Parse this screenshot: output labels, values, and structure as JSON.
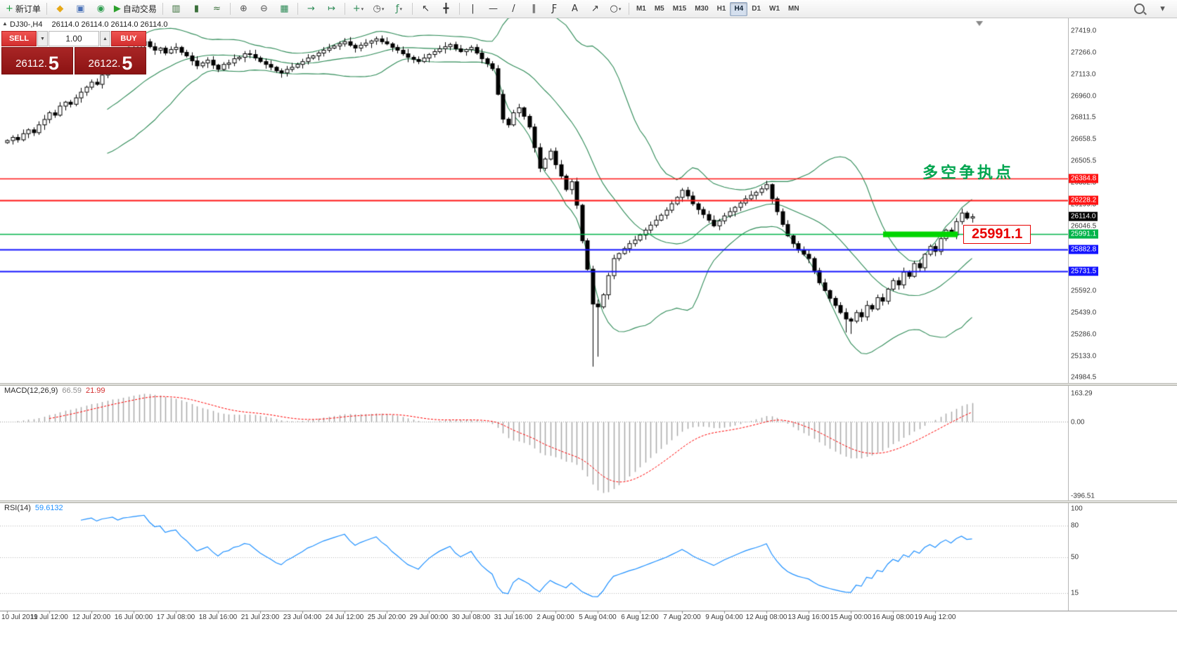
{
  "toolbar": {
    "left_groups": [
      {
        "items": [
          {
            "name": "new-order",
            "glyph": "+",
            "color": "#1a9c3e",
            "label": "新订单"
          }
        ]
      },
      {
        "items": [
          {
            "name": "alerts",
            "glyph": "◆",
            "color": "#e6a817"
          },
          {
            "name": "terminal-window",
            "glyph": "▣",
            "color": "#4a72b8"
          },
          {
            "name": "web-community",
            "glyph": "◉",
            "color": "#2e9e4f"
          },
          {
            "name": "autotrade",
            "glyph": "▶",
            "color": "#2ca02c",
            "label": "自动交易"
          }
        ]
      },
      {
        "items": [
          {
            "name": "bar-chart",
            "glyph": "▥",
            "color": "#3a6f3a"
          },
          {
            "name": "candlestick-chart",
            "glyph": "▮",
            "color": "#3a6f3a"
          },
          {
            "name": "line-chart",
            "glyph": "≈",
            "color": "#3a6f3a"
          }
        ]
      },
      {
        "items": [
          {
            "name": "zoom-in",
            "glyph": "⊕",
            "color": "#555555"
          },
          {
            "name": "zoom-out",
            "glyph": "⊖",
            "color": "#555555"
          },
          {
            "name": "tile-windows",
            "glyph": "▦",
            "color": "#2e8b57"
          }
        ]
      },
      {
        "items": [
          {
            "name": "auto-scroll",
            "glyph": "→",
            "color": "#2e8b57"
          },
          {
            "name": "chart-shift",
            "glyph": "↦",
            "color": "#2e8b57"
          }
        ]
      },
      {
        "items": [
          {
            "name": "new-chart",
            "glyph": "+",
            "color": "#2e8b57",
            "dropdown": true
          },
          {
            "name": "periods",
            "glyph": "◷",
            "color": "#555555",
            "dropdown": true
          },
          {
            "name": "indicators",
            "glyph": "ƒ",
            "color": "#2e8b57",
            "dropdown": true
          }
        ]
      },
      {
        "items": [
          {
            "name": "cursor",
            "glyph": "↖",
            "color": "#333333"
          },
          {
            "name": "crosshair",
            "glyph": "╋",
            "color": "#333333"
          }
        ]
      },
      {
        "items": [
          {
            "name": "vertical-line",
            "glyph": "|",
            "color": "#333333"
          },
          {
            "name": "horizontal-line",
            "glyph": "—",
            "color": "#333333"
          },
          {
            "name": "trendline",
            "glyph": "/",
            "color": "#333333"
          },
          {
            "name": "equidistant-channel",
            "glyph": "∥",
            "color": "#333333"
          },
          {
            "name": "fibonacci",
            "glyph": "Ƒ",
            "color": "#333333"
          },
          {
            "name": "text",
            "glyph": "A",
            "color": "#333333"
          },
          {
            "name": "arrows",
            "glyph": "↗",
            "color": "#333333"
          },
          {
            "name": "shapes",
            "glyph": "○",
            "color": "#333333",
            "dropdown": true
          }
        ]
      }
    ],
    "timeframes": [
      "M1",
      "M5",
      "M15",
      "M30",
      "H1",
      "H4",
      "D1",
      "W1",
      "MN"
    ],
    "active_timeframe": "H4"
  },
  "one_click": {
    "sell_label": "SELL",
    "buy_label": "BUY",
    "volume": "1.00",
    "sell_price_main": "26112.",
    "sell_price_big": "5",
    "buy_price_main": "26122.",
    "buy_price_big": "5"
  },
  "chart": {
    "symbol_info": "DJ30-,H4",
    "ohlc_info": "26114.0  26114.0  26114.0  26114.0",
    "current_price": "26114.0",
    "annotation": "多空争执点",
    "callout": "25991.1",
    "axis_labels": [
      "27419.0",
      "27266.0",
      "27113.0",
      "26960.0",
      "26811.5",
      "26658.5",
      "26505.5",
      "26352.5",
      "26199.5",
      "26046.5",
      "25893.5",
      "25740.5",
      "25592.0",
      "25439.0",
      "25286.0",
      "25133.0",
      "24984.5"
    ],
    "lines": [
      {
        "price": 26384.8,
        "color": "#ff1414",
        "width": 1.5,
        "tag": "26384.8"
      },
      {
        "price": 26228.2,
        "color": "#ff1414",
        "width": 2,
        "tag": "26228.2"
      },
      {
        "price": 25991.1,
        "color": "#00b44a",
        "width": 1.5,
        "tag": "25991.1",
        "highlight": true,
        "highlight_from": 1256,
        "highlight_to": 1362
      },
      {
        "price": 25882.8,
        "color": "#1414ff",
        "width": 2,
        "tag": "25882.8"
      },
      {
        "price": 25731.5,
        "color": "#1414ff",
        "width": 2,
        "tag": "25731.5"
      }
    ]
  },
  "macd_panel": {
    "label": "MACD(12,26,9)",
    "value1": "66.59",
    "value2": "21.99",
    "axis_max": "163.29",
    "axis_zero": "0.00",
    "axis_min": "-396.51"
  },
  "rsi_panel": {
    "label": "RSI(14)",
    "value": "59.6132",
    "axis": [
      "100",
      "80",
      "50",
      "15"
    ],
    "levels": [
      80,
      50,
      15
    ]
  },
  "colors": {
    "bollinger": "#2e8b57",
    "highlight_green": "#00d500",
    "macd_hist": "#a8a8a8",
    "macd_signal": "#ff0000",
    "rsi_line": "#1e90ff",
    "bull_candle": "#ffffff",
    "bear_candle": "#000000"
  },
  "chart_data": {
    "type": "candlestick",
    "symbol": "DJ30-",
    "timeframe": "H4",
    "ylim": [
      24950,
      27470
    ],
    "closes": [
      26650,
      26672,
      26655,
      26698,
      26725,
      26705,
      26760,
      26798,
      26845,
      26828,
      26892,
      26920,
      26905,
      26950,
      26990,
      27025,
      27060,
      27045,
      27110,
      27140,
      27175,
      27160,
      27230,
      27255,
      27290,
      27320,
      27345,
      27310,
      27285,
      27300,
      27265,
      27290,
      27305,
      27270,
      27245,
      27210,
      27175,
      27195,
      27215,
      27180,
      27150,
      27185,
      27195,
      27225,
      27235,
      27260,
      27255,
      27230,
      27205,
      27185,
      27165,
      27140,
      27125,
      27150,
      27165,
      27185,
      27205,
      27230,
      27245,
      27265,
      27285,
      27300,
      27315,
      27330,
      27345,
      27320,
      27300,
      27320,
      27335,
      27350,
      27365,
      27345,
      27330,
      27305,
      27285,
      27260,
      27235,
      27220,
      27205,
      27230,
      27255,
      27275,
      27295,
      27310,
      27325,
      27295,
      27275,
      27290,
      27305,
      27265,
      27225,
      27190,
      27155,
      26975,
      26800,
      26760,
      26845,
      26880,
      26820,
      26745,
      26600,
      26455,
      26520,
      26575,
      26480,
      26400,
      26305,
      26360,
      26195,
      25945,
      25745,
      25500,
      25480,
      25565,
      25700,
      25820,
      25855,
      25890,
      25925,
      25950,
      25985,
      26020,
      26055,
      26090,
      26125,
      26160,
      26205,
      26250,
      26300,
      26260,
      26205,
      26165,
      26130,
      26090,
      26050,
      26085,
      26120,
      26150,
      26180,
      26210,
      26240,
      26265,
      26285,
      26310,
      26340,
      26240,
      26150,
      26060,
      25980,
      25925,
      25880,
      25850,
      25820,
      25735,
      25650,
      25595,
      25540,
      25490,
      25440,
      25395,
      25380,
      25440,
      25410,
      25490,
      25465,
      25545,
      25520,
      25605,
      25665,
      25635,
      25725,
      25695,
      25785,
      25755,
      25850,
      25905,
      25870,
      25960,
      26020,
      25985,
      26080,
      26140,
      26105,
      26114
    ],
    "low_overrides": {
      "111": 25060,
      "112": 25130,
      "159": 25300,
      "160": 25290
    },
    "bollinger_period": 20,
    "bollinger_deviation": 2,
    "macd_params": [
      12,
      26,
      9
    ],
    "rsi_period": 14,
    "time_labels": [
      "10 Jul 2019",
      "11 Jul 12:00",
      "12 Jul 20:00",
      "16 Jul 00:00",
      "17 Jul 08:00",
      "18 Jul 16:00",
      "21 Jul 23:00",
      "23 Jul 04:00",
      "24 Jul 12:00",
      "25 Jul 20:00",
      "29 Jul 00:00",
      "30 Jul 08:00",
      "31 Jul 16:00",
      "2 Aug 00:00",
      "5 Aug 04:00",
      "6 Aug 12:00",
      "7 Aug 20:00",
      "9 Aug 04:00",
      "12 Aug 08:00",
      "13 Aug 16:00",
      "15 Aug 00:00",
      "16 Aug 08:00",
      "19 Aug 12:00"
    ]
  }
}
